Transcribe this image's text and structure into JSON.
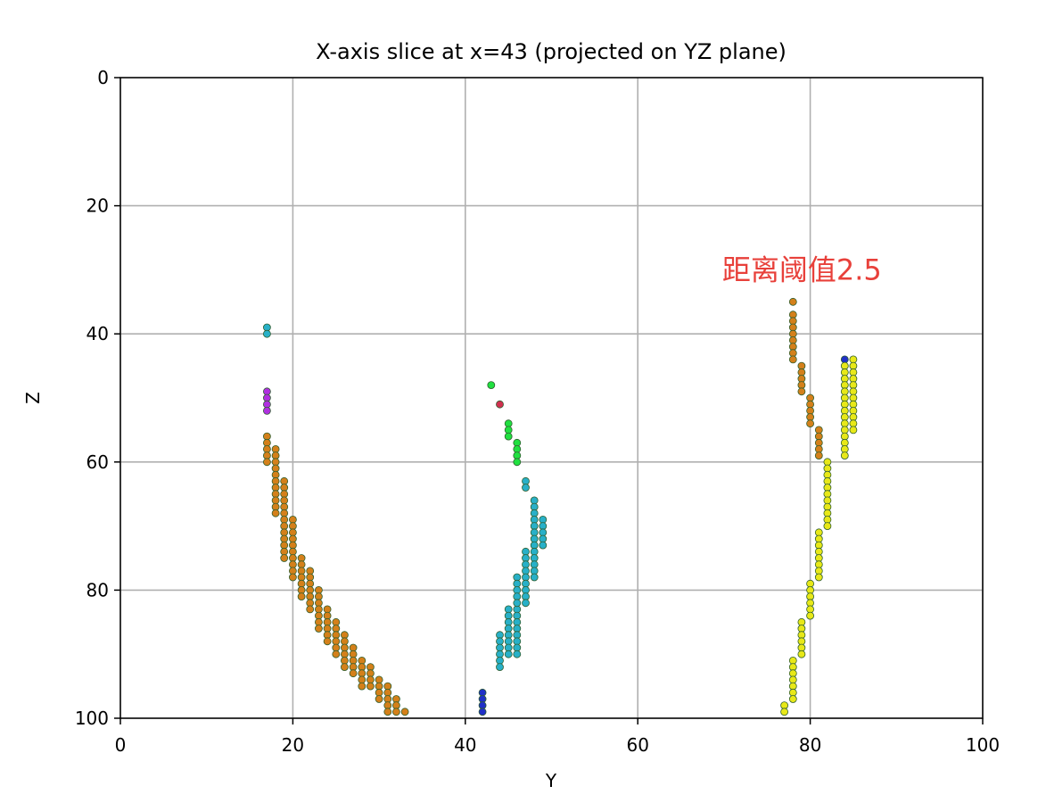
{
  "chart_data": {
    "type": "scatter",
    "title": "X-axis slice at x=43 (projected on YZ plane)",
    "xlabel": "Y",
    "ylabel": "Z",
    "xlim": [
      0,
      100
    ],
    "ylim": [
      100,
      0
    ],
    "y_inverted": true,
    "grid": true,
    "x_ticks": [
      "0",
      "20",
      "40",
      "60",
      "80",
      "100"
    ],
    "y_ticks": [
      "0",
      "20",
      "40",
      "60",
      "80",
      "100"
    ],
    "annotation": {
      "text": "距离阈值2.5",
      "x": 70,
      "y": 30,
      "color": "#e8403a"
    },
    "series": [
      {
        "color": "#d4801a",
        "points": [
          [
            17,
            56
          ],
          [
            17,
            57
          ],
          [
            17,
            58
          ],
          [
            17,
            59
          ],
          [
            17,
            60
          ],
          [
            18,
            58
          ],
          [
            18,
            59
          ],
          [
            18,
            60
          ],
          [
            18,
            61
          ],
          [
            18,
            62
          ],
          [
            18,
            63
          ],
          [
            18,
            64
          ],
          [
            18,
            65
          ],
          [
            18,
            66
          ],
          [
            18,
            67
          ],
          [
            18,
            68
          ],
          [
            19,
            63
          ],
          [
            19,
            64
          ],
          [
            19,
            65
          ],
          [
            19,
            66
          ],
          [
            19,
            67
          ],
          [
            19,
            68
          ],
          [
            19,
            69
          ],
          [
            19,
            70
          ],
          [
            19,
            71
          ],
          [
            19,
            72
          ],
          [
            19,
            73
          ],
          [
            19,
            74
          ],
          [
            19,
            75
          ],
          [
            20,
            69
          ],
          [
            20,
            70
          ],
          [
            20,
            71
          ],
          [
            20,
            72
          ],
          [
            20,
            73
          ],
          [
            20,
            74
          ],
          [
            20,
            75
          ],
          [
            20,
            76
          ],
          [
            20,
            77
          ],
          [
            20,
            78
          ],
          [
            21,
            75
          ],
          [
            21,
            76
          ],
          [
            21,
            77
          ],
          [
            21,
            78
          ],
          [
            21,
            79
          ],
          [
            21,
            80
          ],
          [
            21,
            81
          ],
          [
            22,
            77
          ],
          [
            22,
            78
          ],
          [
            22,
            79
          ],
          [
            22,
            80
          ],
          [
            22,
            81
          ],
          [
            22,
            82
          ],
          [
            22,
            83
          ],
          [
            23,
            80
          ],
          [
            23,
            81
          ],
          [
            23,
            82
          ],
          [
            23,
            83
          ],
          [
            23,
            84
          ],
          [
            23,
            85
          ],
          [
            23,
            86
          ],
          [
            24,
            83
          ],
          [
            24,
            84
          ],
          [
            24,
            85
          ],
          [
            24,
            86
          ],
          [
            24,
            87
          ],
          [
            24,
            88
          ],
          [
            25,
            85
          ],
          [
            25,
            86
          ],
          [
            25,
            87
          ],
          [
            25,
            88
          ],
          [
            25,
            89
          ],
          [
            25,
            90
          ],
          [
            26,
            87
          ],
          [
            26,
            88
          ],
          [
            26,
            89
          ],
          [
            26,
            90
          ],
          [
            26,
            91
          ],
          [
            26,
            92
          ],
          [
            27,
            89
          ],
          [
            27,
            90
          ],
          [
            27,
            91
          ],
          [
            27,
            92
          ],
          [
            27,
            93
          ],
          [
            28,
            91
          ],
          [
            28,
            92
          ],
          [
            28,
            93
          ],
          [
            28,
            94
          ],
          [
            28,
            95
          ],
          [
            29,
            92
          ],
          [
            29,
            93
          ],
          [
            29,
            94
          ],
          [
            29,
            95
          ],
          [
            30,
            94
          ],
          [
            30,
            95
          ],
          [
            30,
            96
          ],
          [
            30,
            97
          ],
          [
            31,
            95
          ],
          [
            31,
            96
          ],
          [
            31,
            97
          ],
          [
            31,
            98
          ],
          [
            31,
            99
          ],
          [
            32,
            97
          ],
          [
            32,
            98
          ],
          [
            32,
            99
          ],
          [
            33,
            99
          ]
        ]
      },
      {
        "color": "#28b0c8",
        "points": [
          [
            17,
            39
          ],
          [
            17,
            40
          ],
          [
            44,
            87
          ],
          [
            44,
            88
          ],
          [
            44,
            89
          ],
          [
            44,
            90
          ],
          [
            44,
            91
          ],
          [
            44,
            92
          ],
          [
            45,
            83
          ],
          [
            45,
            84
          ],
          [
            45,
            85
          ],
          [
            45,
            86
          ],
          [
            45,
            87
          ],
          [
            45,
            88
          ],
          [
            45,
            89
          ],
          [
            45,
            90
          ],
          [
            46,
            83
          ],
          [
            46,
            84
          ],
          [
            46,
            85
          ],
          [
            46,
            86
          ],
          [
            46,
            87
          ],
          [
            46,
            88
          ],
          [
            46,
            89
          ],
          [
            46,
            90
          ],
          [
            46,
            78
          ],
          [
            46,
            79
          ],
          [
            46,
            80
          ],
          [
            46,
            81
          ],
          [
            46,
            82
          ],
          [
            47,
            74
          ],
          [
            47,
            75
          ],
          [
            47,
            76
          ],
          [
            47,
            77
          ],
          [
            47,
            78
          ],
          [
            47,
            79
          ],
          [
            47,
            80
          ],
          [
            47,
            81
          ],
          [
            47,
            82
          ],
          [
            47,
            63
          ],
          [
            47,
            64
          ],
          [
            48,
            66
          ],
          [
            48,
            67
          ],
          [
            48,
            68
          ],
          [
            48,
            69
          ],
          [
            48,
            70
          ],
          [
            48,
            71
          ],
          [
            48,
            72
          ],
          [
            48,
            73
          ],
          [
            48,
            74
          ],
          [
            48,
            75
          ],
          [
            48,
            76
          ],
          [
            48,
            77
          ],
          [
            48,
            78
          ],
          [
            49,
            69
          ],
          [
            49,
            70
          ],
          [
            49,
            71
          ],
          [
            49,
            72
          ],
          [
            49,
            73
          ]
        ]
      },
      {
        "color": "#b030e0",
        "points": [
          [
            17,
            49
          ],
          [
            17,
            50
          ],
          [
            17,
            51
          ],
          [
            17,
            52
          ]
        ]
      },
      {
        "color": "#20e040",
        "points": [
          [
            43,
            48
          ],
          [
            45,
            54
          ],
          [
            45,
            55
          ],
          [
            45,
            56
          ],
          [
            46,
            57
          ],
          [
            46,
            58
          ],
          [
            46,
            59
          ],
          [
            46,
            60
          ]
        ]
      },
      {
        "color": "#d03050",
        "points": [
          [
            44,
            51
          ]
        ]
      },
      {
        "color": "#2030c8",
        "points": [
          [
            42,
            96
          ],
          [
            42,
            97
          ],
          [
            42,
            98
          ],
          [
            42,
            99
          ],
          [
            84,
            44
          ]
        ]
      },
      {
        "color": "#d4801a",
        "points": [
          [
            78,
            35
          ],
          [
            78,
            37
          ],
          [
            78,
            38
          ],
          [
            78,
            39
          ],
          [
            78,
            40
          ],
          [
            78,
            41
          ],
          [
            78,
            42
          ],
          [
            78,
            43
          ],
          [
            78,
            44
          ],
          [
            79,
            45
          ],
          [
            79,
            46
          ],
          [
            79,
            47
          ],
          [
            79,
            48
          ],
          [
            79,
            49
          ],
          [
            80,
            50
          ],
          [
            80,
            51
          ],
          [
            80,
            52
          ],
          [
            80,
            53
          ],
          [
            80,
            54
          ],
          [
            81,
            55
          ],
          [
            81,
            56
          ],
          [
            81,
            57
          ],
          [
            81,
            58
          ],
          [
            81,
            59
          ]
        ]
      },
      {
        "color": "#e8e818",
        "points": [
          [
            84,
            45
          ],
          [
            84,
            46
          ],
          [
            84,
            47
          ],
          [
            84,
            48
          ],
          [
            84,
            49
          ],
          [
            84,
            50
          ],
          [
            84,
            51
          ],
          [
            84,
            52
          ],
          [
            84,
            53
          ],
          [
            84,
            54
          ],
          [
            84,
            55
          ],
          [
            84,
            56
          ],
          [
            84,
            57
          ],
          [
            84,
            58
          ],
          [
            84,
            59
          ],
          [
            85,
            44
          ],
          [
            85,
            45
          ],
          [
            85,
            46
          ],
          [
            85,
            47
          ],
          [
            85,
            48
          ],
          [
            85,
            49
          ],
          [
            85,
            50
          ],
          [
            85,
            51
          ],
          [
            85,
            52
          ],
          [
            85,
            53
          ],
          [
            85,
            54
          ],
          [
            85,
            55
          ],
          [
            82,
            60
          ],
          [
            82,
            61
          ],
          [
            82,
            62
          ],
          [
            82,
            63
          ],
          [
            82,
            64
          ],
          [
            82,
            65
          ],
          [
            82,
            66
          ],
          [
            82,
            67
          ],
          [
            82,
            68
          ],
          [
            82,
            69
          ],
          [
            82,
            70
          ],
          [
            81,
            71
          ],
          [
            81,
            72
          ],
          [
            81,
            73
          ],
          [
            81,
            74
          ],
          [
            81,
            75
          ],
          [
            81,
            76
          ],
          [
            81,
            77
          ],
          [
            81,
            78
          ],
          [
            80,
            79
          ],
          [
            80,
            80
          ],
          [
            80,
            81
          ],
          [
            80,
            82
          ],
          [
            80,
            83
          ],
          [
            80,
            84
          ],
          [
            79,
            85
          ],
          [
            79,
            86
          ],
          [
            79,
            87
          ],
          [
            79,
            88
          ],
          [
            79,
            89
          ],
          [
            79,
            90
          ],
          [
            78,
            91
          ],
          [
            78,
            92
          ],
          [
            78,
            93
          ],
          [
            78,
            94
          ],
          [
            78,
            95
          ],
          [
            78,
            96
          ],
          [
            78,
            97
          ],
          [
            77,
            98
          ],
          [
            77,
            99
          ]
        ]
      }
    ]
  }
}
